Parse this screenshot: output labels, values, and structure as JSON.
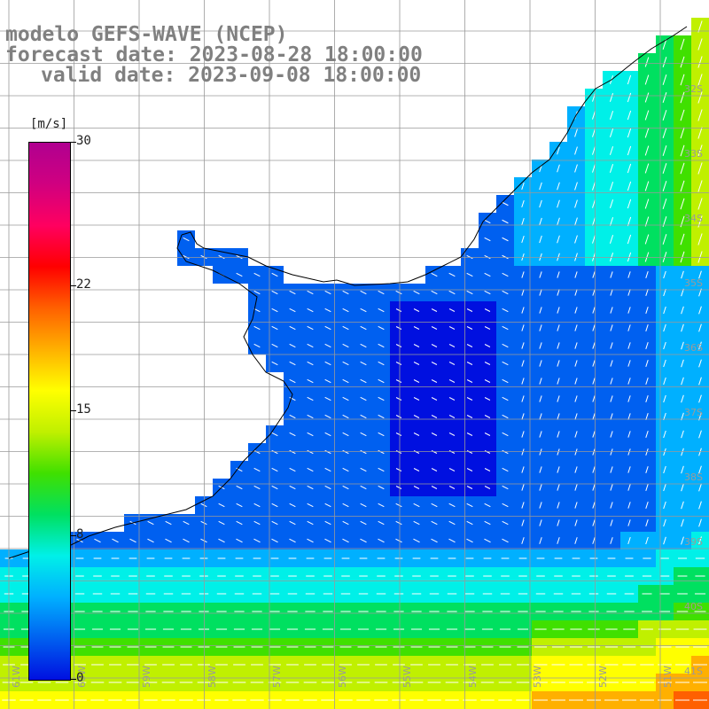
{
  "header": {
    "model_line": "modelo GEFS-WAVE (NCEP)",
    "forecast_line": "forecast date: 2023-08-28 18:00:00",
    "valid_line": "valid date: 2023-09-08 18:00:00"
  },
  "legend": {
    "unit": "[m/s]",
    "ticks": [
      {
        "label": "30",
        "value": 30
      },
      {
        "label": "22",
        "value": 22
      },
      {
        "label": "15",
        "value": 15
      },
      {
        "label": "8",
        "value": 8
      },
      {
        "label": "0",
        "value": 0
      }
    ],
    "colors": [
      "#0010e0",
      "#0060f0",
      "#00b0ff",
      "#00f0e8",
      "#00e060",
      "#40e000",
      "#c0f000",
      "#ffff00",
      "#ffb000",
      "#ff6000",
      "#ff0000",
      "#ff0060",
      "#d00080",
      "#b00090"
    ]
  },
  "map": {
    "colors": {
      "land": "#ffffff",
      "coast": "#000000",
      "grid": "#9a9a9a",
      "arrows": "#ffffff"
    },
    "lat_labels": [
      "32S",
      "33S",
      "34S",
      "35S",
      "36S",
      "37S",
      "38S",
      "39S",
      "40S",
      "41S"
    ],
    "lon_labels": [
      "61W",
      "60W",
      "59W",
      "58W",
      "57W",
      "56W",
      "55W",
      "54W",
      "53W",
      "52W",
      "51W"
    ]
  }
}
